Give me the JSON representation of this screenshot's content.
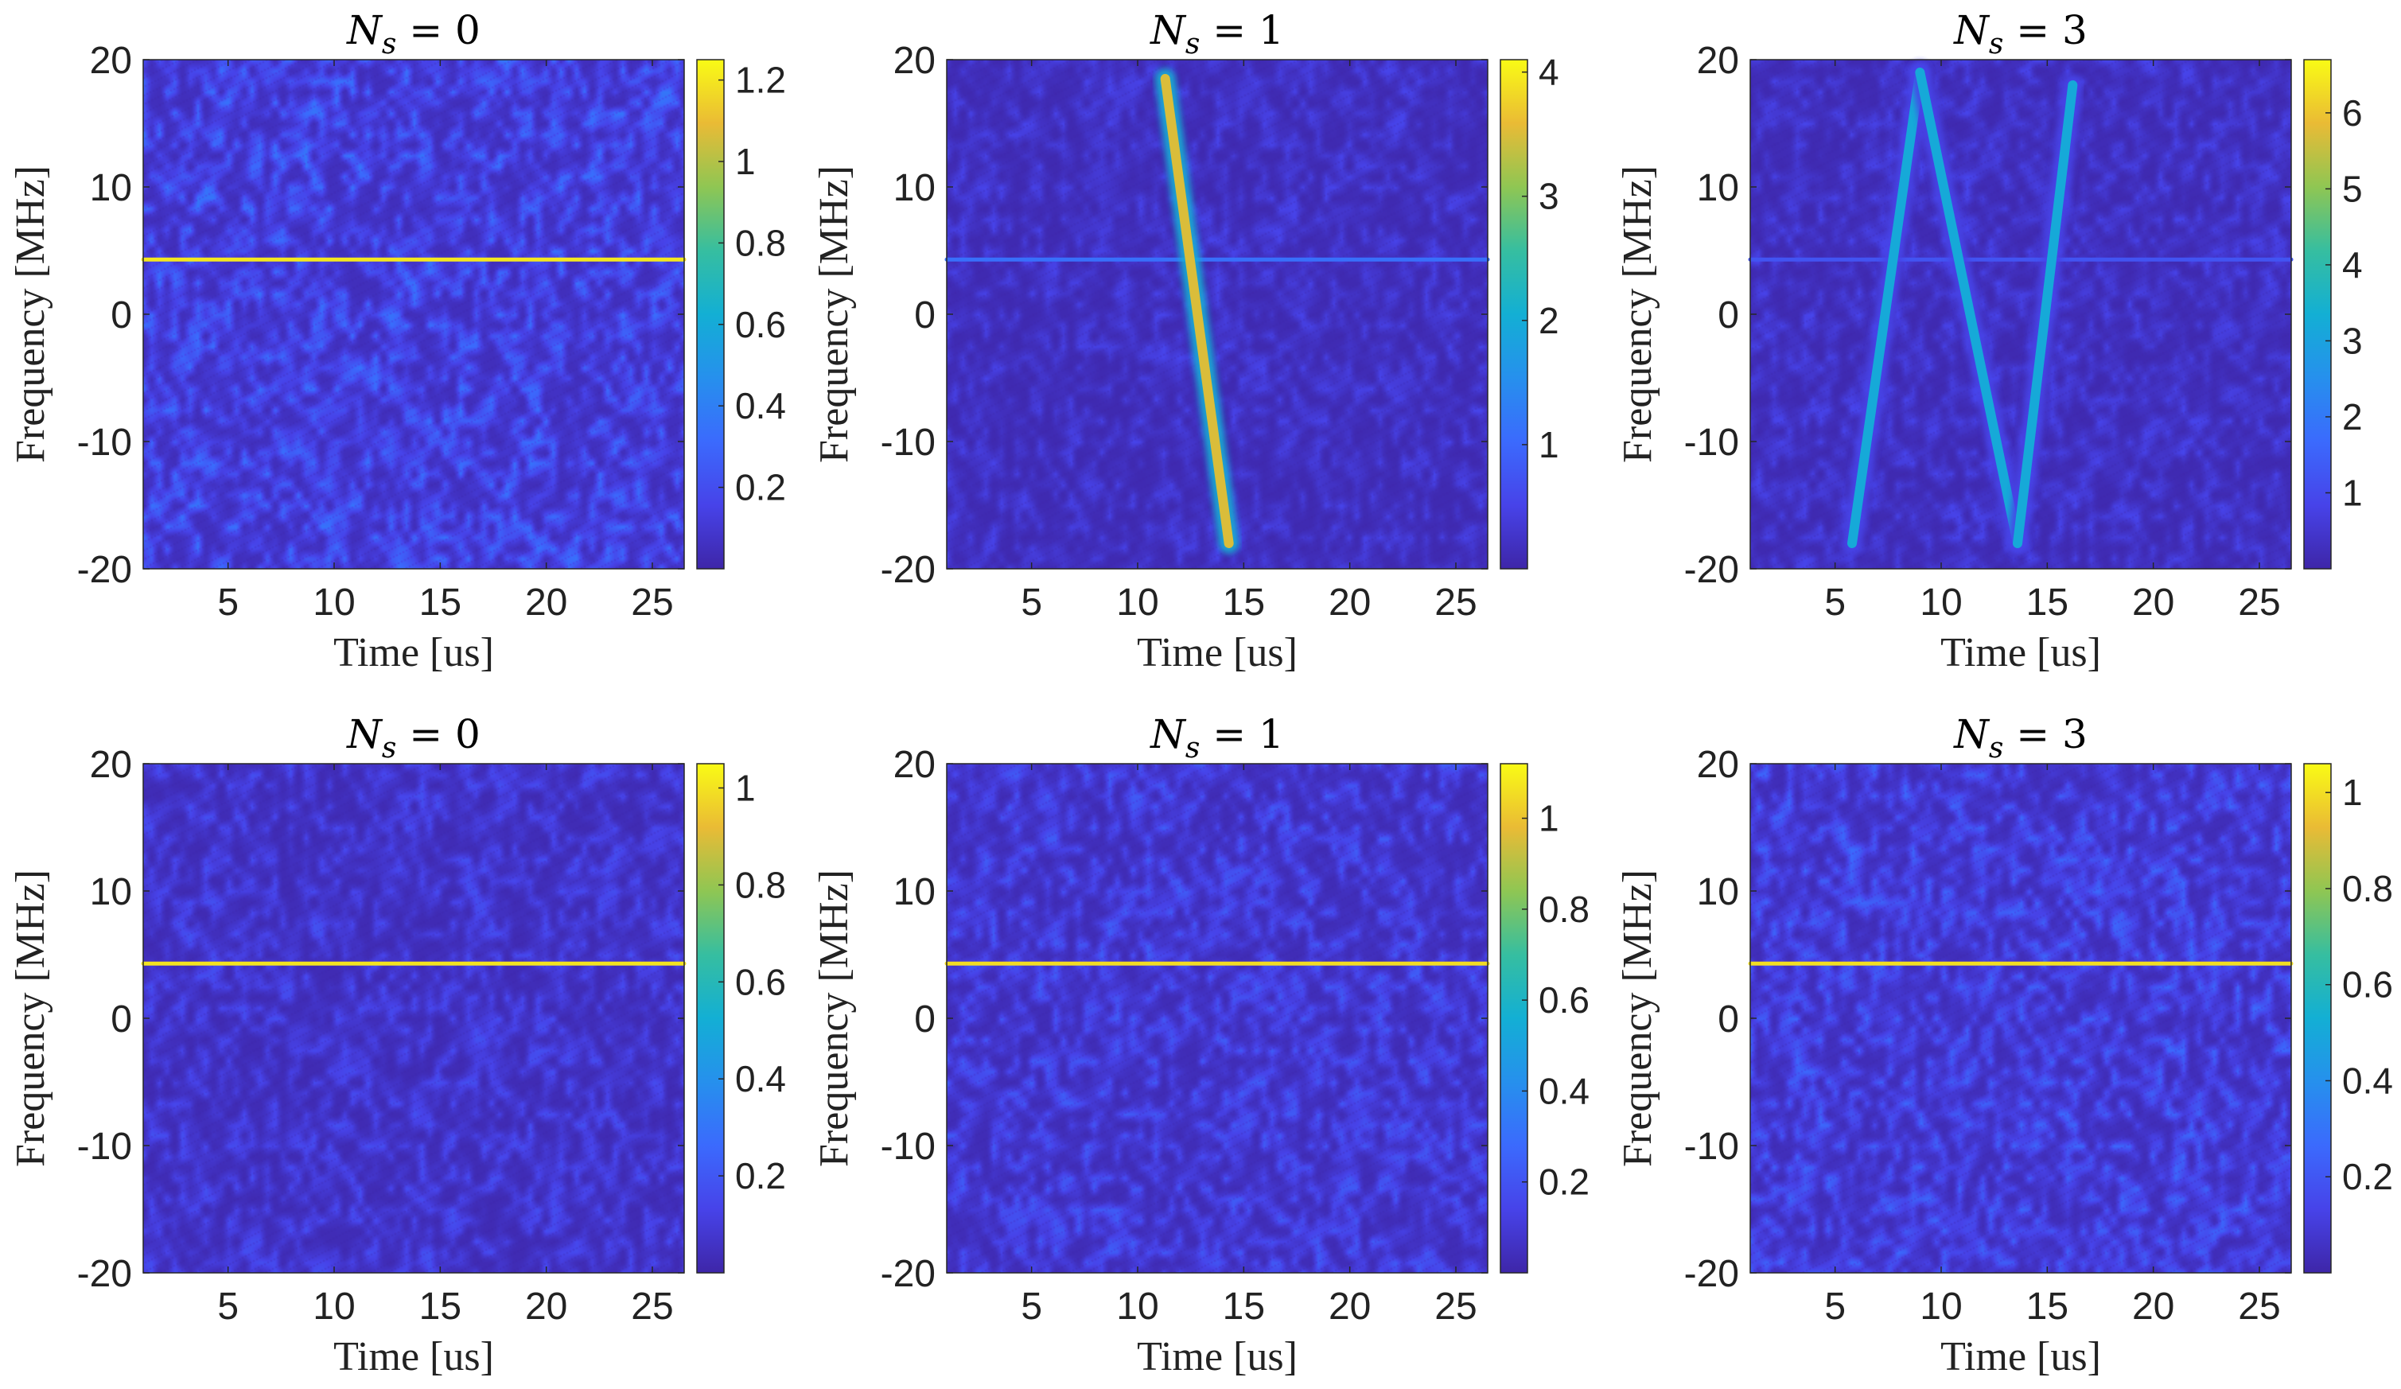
{
  "chart_data": [
    {
      "type": "heatmap",
      "title": "N_s = 0",
      "title_parts": {
        "base": "N",
        "sub": "s",
        "rest": " = 0"
      },
      "xlabel": "Time [us]",
      "ylabel": "Frequency [MHz]",
      "xlim": [
        1,
        26.5
      ],
      "ylim": [
        -20,
        20
      ],
      "xticks": [
        5,
        10,
        15,
        20,
        25
      ],
      "yticks": [
        -20,
        -10,
        0,
        10,
        20
      ],
      "colormap": "parula",
      "colorbar": {
        "range": [
          0,
          1.25
        ],
        "ticks": [
          0.2,
          0.4,
          0.6,
          0.8,
          1,
          1.2
        ]
      },
      "features": [
        {
          "kind": "tone",
          "freq_mhz": 4.3,
          "t_start_us": 1,
          "t_end_us": 26.5,
          "level": 1.2
        }
      ],
      "background_level": 0.3
    },
    {
      "type": "heatmap",
      "title": "N_s = 1",
      "title_parts": {
        "base": "N",
        "sub": "s",
        "rest": " = 1"
      },
      "xlabel": "Time [us]",
      "ylabel": "Frequency [MHz]",
      "xlim": [
        1,
        26.5
      ],
      "ylim": [
        -20,
        20
      ],
      "xticks": [
        5,
        10,
        15,
        20,
        25
      ],
      "yticks": [
        -20,
        -10,
        0,
        10,
        20
      ],
      "colormap": "parula",
      "colorbar": {
        "range": [
          0,
          4.1
        ],
        "ticks": [
          1,
          2,
          3,
          4
        ]
      },
      "features": [
        {
          "kind": "tone",
          "freq_mhz": 4.3,
          "t_start_us": 1,
          "t_end_us": 26.5,
          "level": 1.1
        },
        {
          "kind": "chirp",
          "t0_us": 11.3,
          "f0_mhz": 18.5,
          "t1_us": 14.3,
          "f1_mhz": -18,
          "level": 3.5
        }
      ],
      "background_level": 0.45
    },
    {
      "type": "heatmap",
      "title": "N_s = 3",
      "title_parts": {
        "base": "N",
        "sub": "s",
        "rest": " = 3"
      },
      "xlabel": "Time [us]",
      "ylabel": "Frequency [MHz]",
      "xlim": [
        1,
        26.5
      ],
      "ylim": [
        -20,
        20
      ],
      "xticks": [
        5,
        10,
        15,
        20,
        25
      ],
      "yticks": [
        -20,
        -10,
        0,
        10,
        20
      ],
      "colormap": "parula",
      "colorbar": {
        "range": [
          0,
          6.7
        ],
        "ticks": [
          1,
          2,
          3,
          4,
          5,
          6
        ]
      },
      "features": [
        {
          "kind": "tone",
          "freq_mhz": 4.3,
          "t_start_us": 1,
          "t_end_us": 26.5,
          "level": 1.2
        },
        {
          "kind": "chirp",
          "t0_us": 5.8,
          "f0_mhz": -18,
          "t1_us": 9.0,
          "f1_mhz": 19,
          "level": 3.2
        },
        {
          "kind": "chirp",
          "t0_us": 9.0,
          "f0_mhz": 19,
          "t1_us": 13.6,
          "f1_mhz": -18,
          "level": 3.2
        },
        {
          "kind": "chirp",
          "t0_us": 13.6,
          "f0_mhz": -18,
          "t1_us": 16.2,
          "f1_mhz": 18,
          "level": 3.2
        }
      ],
      "background_level": 0.75
    },
    {
      "type": "heatmap",
      "title": "N_s = 0",
      "title_parts": {
        "base": "N",
        "sub": "s",
        "rest": " = 0"
      },
      "xlabel": "Time [us]",
      "ylabel": "Frequency [MHz]",
      "xlim": [
        1,
        26.5
      ],
      "ylim": [
        -20,
        20
      ],
      "xticks": [
        5,
        10,
        15,
        20,
        25
      ],
      "yticks": [
        -20,
        -10,
        0,
        10,
        20
      ],
      "colormap": "parula",
      "colorbar": {
        "range": [
          0,
          1.05
        ],
        "ticks": [
          0.2,
          0.4,
          0.6,
          0.8,
          1
        ]
      },
      "features": [
        {
          "kind": "tone",
          "freq_mhz": 4.3,
          "t_start_us": 1,
          "t_end_us": 26.5,
          "level": 1.0
        }
      ],
      "background_level": 0.15
    },
    {
      "type": "heatmap",
      "title": "N_s = 1",
      "title_parts": {
        "base": "N",
        "sub": "s",
        "rest": " = 1"
      },
      "xlabel": "Time [us]",
      "ylabel": "Frequency [MHz]",
      "xlim": [
        1,
        26.5
      ],
      "ylim": [
        -20,
        20
      ],
      "xticks": [
        5,
        10,
        15,
        20,
        25
      ],
      "yticks": [
        -20,
        -10,
        0,
        10,
        20
      ],
      "colormap": "parula",
      "colorbar": {
        "range": [
          0,
          1.12
        ],
        "ticks": [
          0.2,
          0.4,
          0.6,
          0.8,
          1
        ]
      },
      "features": [
        {
          "kind": "tone",
          "freq_mhz": 4.3,
          "t_start_us": 1,
          "t_end_us": 26.5,
          "level": 1.05
        }
      ],
      "background_level": 0.2
    },
    {
      "type": "heatmap",
      "title": "N_s = 3",
      "title_parts": {
        "base": "N",
        "sub": "s",
        "rest": " = 3"
      },
      "xlabel": "Time [us]",
      "ylabel": "Frequency [MHz]",
      "xlim": [
        1,
        26.5
      ],
      "ylim": [
        -20,
        20
      ],
      "xticks": [
        5,
        10,
        15,
        20,
        25
      ],
      "yticks": [
        -20,
        -10,
        0,
        10,
        20
      ],
      "colormap": "parula",
      "colorbar": {
        "range": [
          0,
          1.06
        ],
        "ticks": [
          0.2,
          0.4,
          0.6,
          0.8,
          1
        ]
      },
      "features": [
        {
          "kind": "tone",
          "freq_mhz": 4.3,
          "t_start_us": 1,
          "t_end_us": 26.5,
          "level": 1.0
        }
      ],
      "background_level": 0.22
    }
  ]
}
